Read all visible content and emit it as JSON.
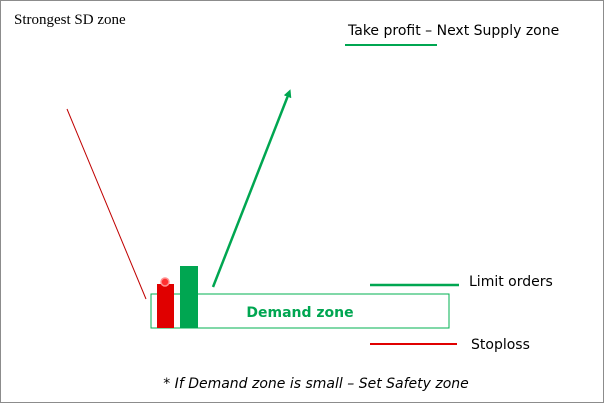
{
  "title": "Strongest SD zone",
  "take_profit_label": "Take profit – Next Supply zone",
  "limit_orders_label": "Limit orders",
  "stoploss_label": "Stoploss",
  "demand_zone_label": "Demand zone",
  "footnote": "* If Demand zone is small – Set Safety zone",
  "colors": {
    "green": "#00a651",
    "red": "#e00000",
    "dark_red": "#c00000",
    "zone_border": "#00b050",
    "text": "#000000"
  }
}
